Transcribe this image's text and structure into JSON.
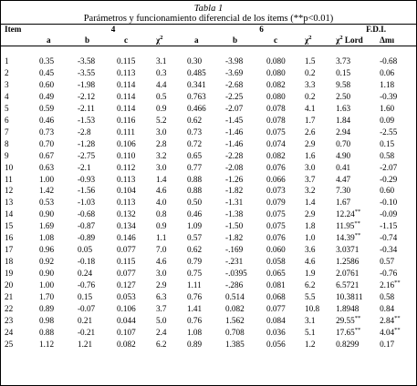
{
  "caption": {
    "title": "Tabla 1",
    "subtitle": "Parámetros y funcionamiento diferencial de los ítems (**p<0.01)"
  },
  "header": {
    "item": "Item",
    "group4": "4",
    "group6": "6",
    "edi": "F.D.I.",
    "a": "a",
    "b": "b",
    "c": "c",
    "chi2": "χ",
    "sq": "2",
    "lord": " Lord",
    "delta": "Δmı"
  },
  "rows": [
    [
      "1",
      "0.35",
      "-3.58",
      "0.115",
      "3.1",
      "0.30",
      "-3.98",
      "0.080",
      "1.5",
      "3.73",
      "-0.68"
    ],
    [
      "2",
      "0.45",
      "-3.55",
      "0.113",
      "0.3",
      "0.485",
      "-3.69",
      "0.080",
      "0.2",
      "0.15",
      "0.06"
    ],
    [
      "3",
      "0.60",
      "-1.98",
      "0.114",
      "4.4",
      "0.341",
      "-2.68",
      "0.082",
      "3.3",
      "9.58",
      "1.18"
    ],
    [
      "4",
      "0.49",
      "-2.12",
      "0.114",
      "0.5",
      "0.763",
      "-2.25",
      "0.080",
      "0.2",
      "2.50",
      "-0.39"
    ],
    [
      "5",
      "0.59",
      "-2.11",
      "0.114",
      "0.9",
      "0.466",
      "-2.07",
      "0.078",
      "4.1",
      "1.63",
      "1.60"
    ],
    [
      "6",
      "0.46",
      "-1.53",
      "0.116",
      "5.2",
      "0.62",
      "-1.45",
      "0.078",
      "1.7",
      "1.84",
      "0.09"
    ],
    [
      "7",
      "0.73",
      "-2.8",
      "0.111",
      "3.0",
      "0.73",
      "-1.46",
      "0.075",
      "2.6",
      "2.94",
      "-2.55"
    ],
    [
      "8",
      "0.70",
      "-1.28",
      "0.106",
      "2.8",
      "0.72",
      "-1.46",
      "0.074",
      "2.9",
      "0.70",
      "0.15"
    ],
    [
      "9",
      "0.67",
      "-2.75",
      "0.110",
      "3.2",
      "0.65",
      "-2.28",
      "0.082",
      "1.6",
      "4.90",
      "0.58"
    ],
    [
      "10",
      "0.63",
      "-2.1",
      "0.112",
      "3.0",
      "0.77",
      "-2.08",
      "0.076",
      "3.0",
      "0.41",
      "-2.07"
    ],
    [
      "11",
      "1.00",
      "-0.93",
      "0.113",
      "1.4",
      "0.88",
      "-1.26",
      "0.066",
      "3.7",
      "4.47",
      "-0.29"
    ],
    [
      "12",
      "1.42",
      "-1.56",
      "0.104",
      "4.6",
      "0.88",
      "-1.82",
      "0.073",
      "3.2",
      "7.30",
      "0.60"
    ],
    [
      "13",
      "0.53",
      "-1.03",
      "0.113",
      "4.0",
      "0.50",
      "-1.31",
      "0.079",
      "1.4",
      "1.67",
      "-0.10"
    ],
    [
      "14",
      "0.90",
      "-0.68",
      "0.132",
      "0.8",
      "0.46",
      "-1.38",
      "0.075",
      "2.9",
      "12.24**",
      "-0.09"
    ],
    [
      "15",
      "1.69",
      "-0.87",
      "0.134",
      "0.9",
      "1.09",
      "-1.50",
      "0.075",
      "1.8",
      "11.95**",
      "-1.15"
    ],
    [
      "16",
      "1.08",
      "-0.89",
      "0.146",
      "1.1",
      "0.57",
      "-1.82",
      "0.076",
      "1.0",
      "14.39**",
      "-0.74"
    ],
    [
      "17",
      "0.96",
      "0.05",
      "0.077",
      "7.0",
      "0.62",
      "-.169",
      "0.060",
      "3.6",
      "3.0371",
      "-0.34"
    ],
    [
      "18",
      "0.92",
      "-0.18",
      "0.115",
      "4.6",
      "0.79",
      "-.231",
      "0.058",
      "4.6",
      "1.2586",
      "0.57"
    ],
    [
      "19",
      "0.90",
      "0.24",
      "0.077",
      "3.0",
      "0.75",
      "-.0395",
      "0.065",
      "1.9",
      "2.0761",
      "-0.76"
    ],
    [
      "20",
      "1.00",
      "-0.76",
      "0.127",
      "2.9",
      "1.11",
      "-.286",
      "0.081",
      "6.2",
      "6.5721",
      "2.16**"
    ],
    [
      "21",
      "1.70",
      "0.15",
      "0.053",
      "6.3",
      "0.76",
      "0.514",
      "0.068",
      "5.5",
      "10.3811",
      "0.58"
    ],
    [
      "22",
      "0.89",
      "-0.07",
      "0.106",
      "3.7",
      "1.41",
      "0.082",
      "0.077",
      "10.8",
      "1.8948",
      "0.84"
    ],
    [
      "23",
      "0.98",
      "0.21",
      "0.044",
      "5.0",
      "0.76",
      "1.562",
      "0.084",
      "3.1",
      "29.55**",
      "2.84**"
    ],
    [
      "24",
      "0.88",
      "-0.21",
      "0.107",
      "2.4",
      "1.08",
      "0.708",
      "0.036",
      "5.1",
      "17.65**",
      "4.04**"
    ],
    [
      "25",
      "1.12",
      "1.21",
      "0.082",
      "6.2",
      "0.89",
      "1.385",
      "0.056",
      "1.2",
      "0.8299",
      "0.17"
    ]
  ]
}
